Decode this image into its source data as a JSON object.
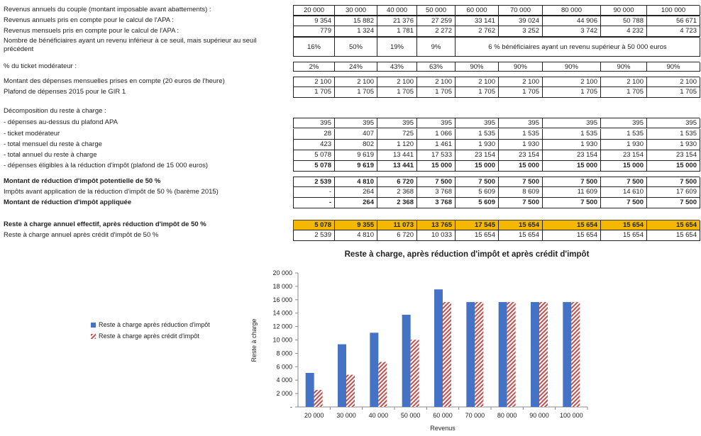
{
  "table": {
    "rows": [
      {
        "label": "Revenus annuels du couple (montant imposable avant abattements) :",
        "values": [
          "20 000",
          "30 000",
          "40 000",
          "50 000",
          "60 000",
          "70 000",
          "80 000",
          "90 000",
          "100 000"
        ],
        "align": "center"
      },
      {
        "label": "Revenus annuels pris en compte pour le calcul de l'APA :",
        "values": [
          "9 354",
          "15 882",
          "21 376",
          "27 259",
          "33 141",
          "39 024",
          "44 906",
          "50 788",
          "56 671"
        ]
      },
      {
        "label": "Revenus mensuels pris en compte pour le calcul de l'APA :",
        "values": [
          "779",
          "1 324",
          "1 781",
          "2 272",
          "2 762",
          "3 252",
          "3 742",
          "4 232",
          "4 723"
        ]
      },
      {
        "label": "Nombre de bénéficiaires ayant un revenu inférieur à ce seuil, mais supérieur au seuil précédent",
        "values": [
          "16%",
          "50%",
          "19%",
          "9%"
        ],
        "span_text": "6 % bénéficiaires ayant un revenu supérieur à 50 000 euros",
        "align": "center"
      },
      {
        "label": "% du ticket modérateur :",
        "values": [
          "2%",
          "24%",
          "43%",
          "63%",
          "90%",
          "90%",
          "90%",
          "90%",
          "90%"
        ],
        "align": "center"
      },
      {
        "label": "Montant des dépenses mensuelles prises en compte (20 euros de l'heure)",
        "values": [
          "2 100",
          "2 100",
          "2 100",
          "2 100",
          "2 100",
          "2 100",
          "2 100",
          "2 100",
          "2 100"
        ]
      },
      {
        "label": "Plafond de dépenses 2015 pour le GIR 1",
        "values": [
          "1 705",
          "1 705",
          "1 705",
          "1 705",
          "1 705",
          "1 705",
          "1 705",
          "1 705",
          "1 705"
        ]
      },
      {
        "label": "Décomposition du reste à charge :",
        "values": []
      },
      {
        "label": "- dépenses au-dessus du plafond APA",
        "values": [
          "395",
          "395",
          "395",
          "395",
          "395",
          "395",
          "395",
          "395",
          "395"
        ]
      },
      {
        "label": "- ticket modérateur",
        "values": [
          "28",
          "407",
          "725",
          "1 066",
          "1 535",
          "1 535",
          "1 535",
          "1 535",
          "1 535"
        ]
      },
      {
        "label": "- total mensuel du reste à charge",
        "values": [
          "423",
          "802",
          "1 120",
          "1 461",
          "1 930",
          "1 930",
          "1 930",
          "1 930",
          "1 930"
        ]
      },
      {
        "label": "- total annuel du reste à charge",
        "values": [
          "5 078",
          "9 619",
          "13 441",
          "17 533",
          "23 154",
          "23 154",
          "23 154",
          "23 154",
          "23 154"
        ]
      },
      {
        "label": "- dépenses éligibles à la réduction d'impôt (plafond de 15 000 euros)",
        "values": [
          "5 078",
          "9 619",
          "13 441",
          "15 000",
          "15 000",
          "15 000",
          "15 000",
          "15 000",
          "15 000"
        ],
        "bold_values": true
      },
      {
        "label": "Montant de réduction d'impôt potentielle de 50 %",
        "values": [
          "2 539",
          "4 810",
          "6 720",
          "7 500",
          "7 500",
          "7 500",
          "7 500",
          "7 500",
          "7 500"
        ],
        "bold": true,
        "bold_values": true
      },
      {
        "label": "Impôts avant application de la réduction d'impôt de 50 % (barème 2015)",
        "values": [
          "-",
          "264",
          "2 368",
          "3 768",
          "5 609",
          "8 609",
          "11 609",
          "14 610",
          "17 609"
        ]
      },
      {
        "label": "Montant de réduction d'impôt appliquée",
        "values": [
          "-",
          "264",
          "2 368",
          "3 768",
          "5 609",
          "7 500",
          "7 500",
          "7 500",
          "7 500"
        ],
        "bold": true,
        "bold_values": true
      },
      {
        "label": "Reste à charge annuel effectif, après réduction d'impôt de 50 %",
        "values": [
          "5 078",
          "9 355",
          "11 073",
          "13 765",
          "17 545",
          "15 654",
          "15 654",
          "15 654",
          "15 654"
        ],
        "bold": true,
        "highlight": true
      },
      {
        "label": "Reste à charge annuel après crédit d'impôt de 50 %",
        "values": [
          "2 539",
          "4 810",
          "6 720",
          "10 033",
          "15 654",
          "15 654",
          "15 654",
          "15 654",
          "15 654"
        ]
      }
    ]
  },
  "chart_data": {
    "type": "bar",
    "title": "Reste à charge, après réduction d'impôt et après crédit d'impôt",
    "xlabel": "Revenus",
    "ylabel": "Reste à charge",
    "categories": [
      "20 000",
      "30 000",
      "40 000",
      "50 000",
      "60 000",
      "70 000",
      "80 000",
      "90 000",
      "100 000"
    ],
    "series": [
      {
        "name": "Reste à charge après réduction d'impôt",
        "values": [
          5078,
          9355,
          11073,
          13765,
          17545,
          15654,
          15654,
          15654,
          15654
        ],
        "color": "#4472c4",
        "pattern": "solid"
      },
      {
        "name": "Reste à charge après crédit d'impôt",
        "values": [
          2539,
          4810,
          6720,
          10033,
          15654,
          15654,
          15654,
          15654,
          15654
        ],
        "color": "#c0504d",
        "pattern": "diagonal-hatch"
      }
    ],
    "ylim": [
      0,
      20000
    ],
    "yticks": [
      "-",
      "2 000",
      "4 000",
      "6 000",
      "8 000",
      "10 000",
      "12 000",
      "14 000",
      "16 000",
      "18 000",
      "20 000"
    ],
    "legend_position": "left",
    "grid": false
  }
}
